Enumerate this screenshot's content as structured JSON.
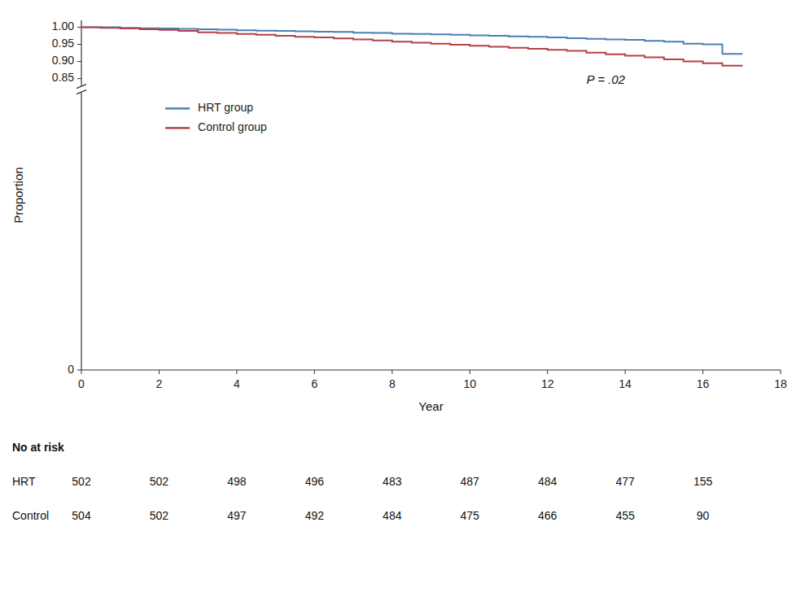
{
  "chart_data": {
    "type": "step",
    "xlabel": "Year",
    "ylabel": "Proportion",
    "x": [
      0,
      0.5,
      1,
      1.5,
      2,
      2.5,
      3,
      3.5,
      4,
      4.5,
      5,
      5.5,
      6,
      6.5,
      7,
      7.5,
      8,
      8.5,
      9,
      9.5,
      10,
      10.5,
      11,
      11.5,
      12,
      12.5,
      13,
      13.5,
      14,
      14.5,
      15,
      15.5,
      16,
      16.5,
      17
    ],
    "series": [
      {
        "name": "HRT group",
        "color": "#4a7fb5",
        "values": [
          1.0,
          1.0,
          0.998,
          0.997,
          0.996,
          0.995,
          0.994,
          0.993,
          0.991,
          0.99,
          0.989,
          0.988,
          0.987,
          0.986,
          0.984,
          0.983,
          0.981,
          0.98,
          0.979,
          0.978,
          0.976,
          0.975,
          0.973,
          0.972,
          0.97,
          0.968,
          0.966,
          0.964,
          0.963,
          0.96,
          0.958,
          0.952,
          0.95,
          0.922,
          0.92
        ]
      },
      {
        "name": "Control group",
        "color": "#b5404a",
        "values": [
          1.0,
          0.998,
          0.996,
          0.994,
          0.992,
          0.989,
          0.985,
          0.983,
          0.98,
          0.978,
          0.975,
          0.972,
          0.97,
          0.967,
          0.964,
          0.961,
          0.958,
          0.955,
          0.952,
          0.949,
          0.946,
          0.943,
          0.94,
          0.937,
          0.934,
          0.931,
          0.926,
          0.921,
          0.917,
          0.912,
          0.906,
          0.9,
          0.895,
          0.888,
          0.885
        ]
      }
    ],
    "xlim": [
      0,
      18
    ],
    "xticks": [
      0,
      2,
      4,
      6,
      8,
      10,
      12,
      14,
      16,
      18
    ],
    "ylim": [
      0,
      1.02
    ],
    "yticks": [
      0,
      0.85,
      {
        "value": 0.9,
        "label": "0.90"
      },
      {
        "value": 0.95,
        "label": "0.95"
      },
      {
        "value": 1.0,
        "label": "1.00"
      }
    ],
    "annotations": [
      {
        "text": "P = .02"
      }
    ],
    "legend": "left",
    "grid": false,
    "risk_table": {
      "label": "No at risk",
      "times": [
        0,
        2,
        4,
        6,
        8,
        10,
        12,
        14,
        16
      ],
      "rows": [
        {
          "name": "HRT",
          "values": [
            502,
            502,
            498,
            496,
            483,
            487,
            484,
            477,
            155
          ]
        },
        {
          "name": "Control",
          "values": [
            504,
            502,
            497,
            492,
            484,
            475,
            466,
            455,
            90
          ]
        }
      ]
    }
  }
}
